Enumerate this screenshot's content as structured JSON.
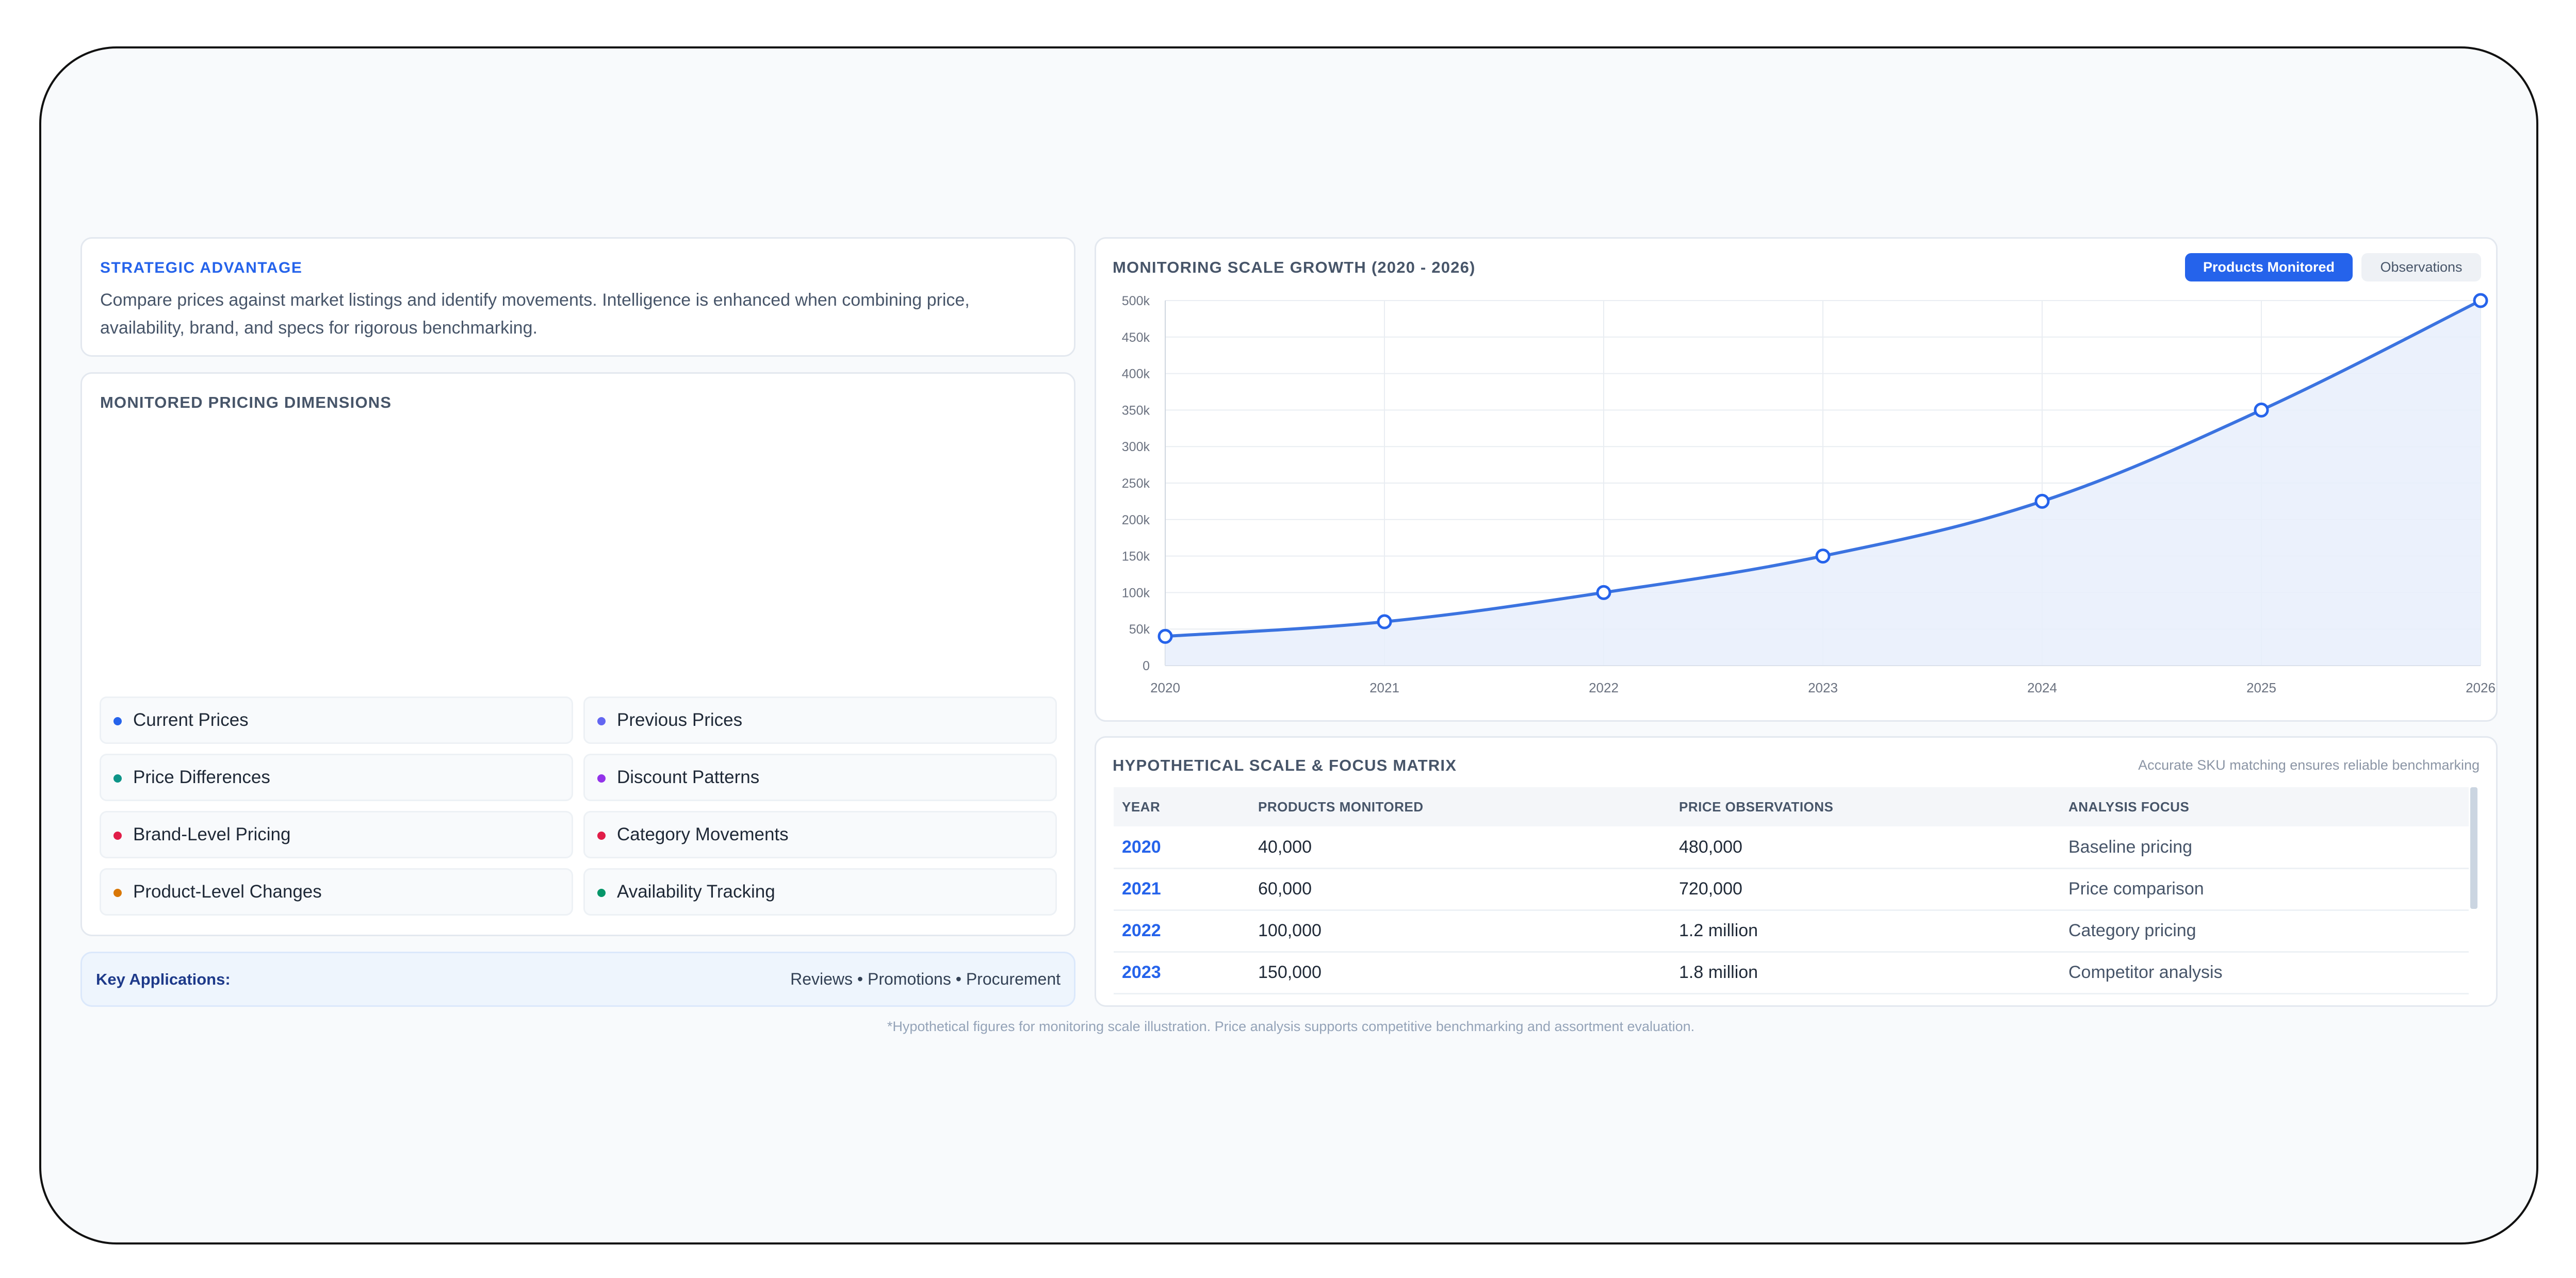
{
  "strategic": {
    "title": "STRATEGIC ADVANTAGE",
    "body": "Compare prices against market listings and identify movements. Intelligence is enhanced when combining price, availability, brand, and specs for rigorous benchmarking."
  },
  "dimensions": {
    "title": "MONITORED PRICING DIMENSIONS",
    "items": [
      {
        "label": "Current Prices",
        "color": "#2563eb"
      },
      {
        "label": "Previous Prices",
        "color": "#6366f1"
      },
      {
        "label": "Price Differences",
        "color": "#0d9488"
      },
      {
        "label": "Discount Patterns",
        "color": "#9333ea"
      },
      {
        "label": "Brand-Level Pricing",
        "color": "#e11d48"
      },
      {
        "label": "Category Movements",
        "color": "#e11d48"
      },
      {
        "label": "Product-Level Changes",
        "color": "#d97706"
      },
      {
        "label": "Availability Tracking",
        "color": "#059669"
      }
    ]
  },
  "key_applications": {
    "label": "Key Applications:",
    "items": "Reviews • Promotions • Procurement"
  },
  "chart": {
    "title": "MONITORING SCALE GROWTH (2020 - 2026)",
    "toggle_active": "Products Monitored",
    "toggle_inactive": "Observations"
  },
  "chart_data": {
    "type": "area",
    "title": "MONITORING SCALE GROWTH (2020 - 2026)",
    "x": [
      2020,
      2021,
      2022,
      2023,
      2024,
      2025,
      2026
    ],
    "series": [
      {
        "name": "Products Monitored",
        "values": [
          40000,
          60000,
          100000,
          150000,
          225000,
          350000,
          500000
        ]
      }
    ],
    "ylim": [
      0,
      500000
    ],
    "yticks": [
      0,
      50000,
      100000,
      150000,
      200000,
      250000,
      300000,
      350000,
      400000,
      450000,
      500000
    ],
    "ytick_labels": [
      "0",
      "50k",
      "100k",
      "150k",
      "200k",
      "250k",
      "300k",
      "350k",
      "400k",
      "450k",
      "500k"
    ],
    "xtick_labels": [
      "2020",
      "2021",
      "2022",
      "2023",
      "2024",
      "2025",
      "2026"
    ],
    "grid": true,
    "line_color": "#3b73e0",
    "fill_color": "#e8effc"
  },
  "matrix": {
    "title": "HYPOTHETICAL SCALE & FOCUS MATRIX",
    "note": "Accurate SKU matching ensures reliable benchmarking",
    "headers": {
      "year": "YEAR",
      "products": "PRODUCTS MONITORED",
      "observations": "PRICE OBSERVATIONS",
      "focus": "ANALYSIS FOCUS"
    },
    "rows": [
      {
        "year": "2020",
        "products": "40,000",
        "observations": "480,000",
        "focus": "Baseline pricing"
      },
      {
        "year": "2021",
        "products": "60,000",
        "observations": "720,000",
        "focus": "Price comparison"
      },
      {
        "year": "2022",
        "products": "100,000",
        "observations": "1.2 million",
        "focus": "Category pricing"
      },
      {
        "year": "2023",
        "products": "150,000",
        "observations": "1.8 million",
        "focus": "Competitor analysis"
      }
    ]
  },
  "footnote": "*Hypothetical figures for monitoring scale illustration. Price analysis supports competitive benchmarking and assortment evaluation."
}
